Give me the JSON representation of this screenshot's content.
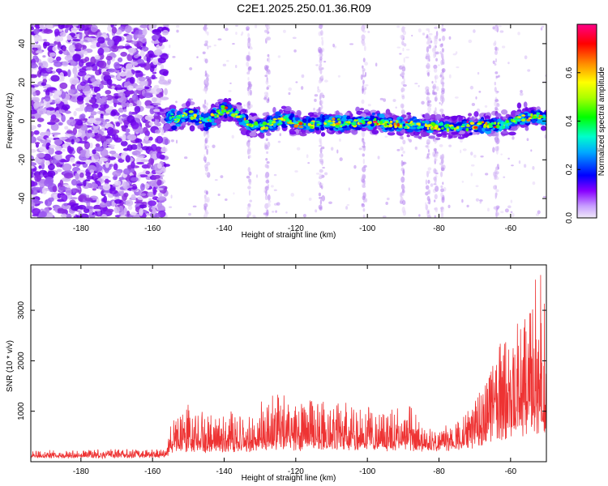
{
  "title": "C2E1.2025.250.01.36.R09",
  "chart_data": [
    {
      "type": "heatmap",
      "xlabel": "Height of straight line (km)",
      "ylabel": "Frequency (Hz)",
      "xlim": [
        -194,
        -50
      ],
      "ylim": [
        -50,
        50
      ],
      "xticks": [
        -180,
        -160,
        -140,
        -120,
        -100,
        -80,
        -60
      ],
      "yticks": [
        -40,
        -20,
        0,
        20,
        40
      ],
      "colorbar": {
        "label": "Normalized spectral amplitude",
        "range": [
          0.0,
          0.8
        ],
        "ticks": [
          0.0,
          0.2,
          0.4,
          0.6
        ],
        "colors": [
          "#e8d8f8",
          "#8800ff",
          "#0000ff",
          "#00ffff",
          "#00ff00",
          "#ffff00",
          "#ff7700",
          "#ff0000",
          "#ff0080"
        ]
      },
      "noise_region_km": [
        -194,
        -156
      ],
      "signal_region_km": [
        -156,
        -50
      ],
      "ridge_frequency_hz": [
        {
          "x": -154,
          "y": 0
        },
        {
          "x": -150,
          "y": 4
        },
        {
          "x": -145,
          "y": 0
        },
        {
          "x": -140,
          "y": 6
        },
        {
          "x": -137,
          "y": 4
        },
        {
          "x": -133,
          "y": -2
        },
        {
          "x": -128,
          "y": -2
        },
        {
          "x": -123,
          "y": 1
        },
        {
          "x": -118,
          "y": -2
        },
        {
          "x": -112,
          "y": -1
        },
        {
          "x": -105,
          "y": -1
        },
        {
          "x": -98,
          "y": 0
        },
        {
          "x": -92,
          "y": -2
        },
        {
          "x": -86,
          "y": -2
        },
        {
          "x": -80,
          "y": -3
        },
        {
          "x": -74,
          "y": -3
        },
        {
          "x": -68,
          "y": -2
        },
        {
          "x": -62,
          "y": -2
        },
        {
          "x": -56,
          "y": 2
        },
        {
          "x": -50,
          "y": 2
        }
      ]
    },
    {
      "type": "line",
      "xlabel": "Height of straight line (km)",
      "ylabel": "SNR (10 * v/v)",
      "xlim": [
        -194,
        -50
      ],
      "ylim": [
        0,
        3900
      ],
      "xticks": [
        -180,
        -160,
        -140,
        -120,
        -100,
        -80,
        -60
      ],
      "yticks": [
        1000,
        2000,
        3000
      ],
      "color": "#ee3333",
      "envelope": [
        {
          "x": -194,
          "base": 90,
          "amp": 120
        },
        {
          "x": -156,
          "base": 100,
          "amp": 160
        },
        {
          "x": -155,
          "base": 250,
          "amp": 500
        },
        {
          "x": -150,
          "base": 250,
          "amp": 1000
        },
        {
          "x": -145,
          "base": 230,
          "amp": 700
        },
        {
          "x": -140,
          "base": 230,
          "amp": 800
        },
        {
          "x": -135,
          "base": 250,
          "amp": 750
        },
        {
          "x": -130,
          "base": 280,
          "amp": 900
        },
        {
          "x": -125,
          "base": 300,
          "amp": 1150
        },
        {
          "x": -120,
          "base": 300,
          "amp": 950
        },
        {
          "x": -115,
          "base": 300,
          "amp": 1000
        },
        {
          "x": -110,
          "base": 300,
          "amp": 950
        },
        {
          "x": -105,
          "base": 300,
          "amp": 900
        },
        {
          "x": -100,
          "base": 300,
          "amp": 850
        },
        {
          "x": -95,
          "base": 290,
          "amp": 700
        },
        {
          "x": -88,
          "base": 300,
          "amp": 950
        },
        {
          "x": -85,
          "base": 260,
          "amp": 450
        },
        {
          "x": -80,
          "base": 260,
          "amp": 350
        },
        {
          "x": -75,
          "base": 300,
          "amp": 500
        },
        {
          "x": -70,
          "base": 350,
          "amp": 900
        },
        {
          "x": -65,
          "base": 500,
          "amp": 1700
        },
        {
          "x": -60,
          "base": 600,
          "amp": 2200
        },
        {
          "x": -55,
          "base": 700,
          "amp": 2700
        },
        {
          "x": -52,
          "base": 700,
          "amp": 3100
        },
        {
          "x": -50,
          "base": 700,
          "amp": 3000
        }
      ]
    }
  ]
}
